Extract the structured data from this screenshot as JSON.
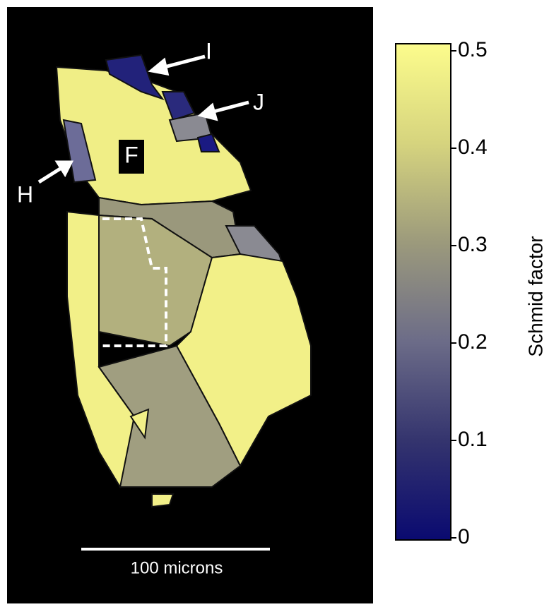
{
  "image": {
    "labels": {
      "i": "I",
      "j": "J",
      "h": "H",
      "f": "F"
    },
    "scale_bar": "100 microns"
  },
  "colorbar": {
    "label": "Schmid factor",
    "lim": [
      0,
      0.5
    ],
    "ticks": [
      0,
      0.1,
      0.2,
      0.3,
      0.4,
      0.5
    ]
  }
}
